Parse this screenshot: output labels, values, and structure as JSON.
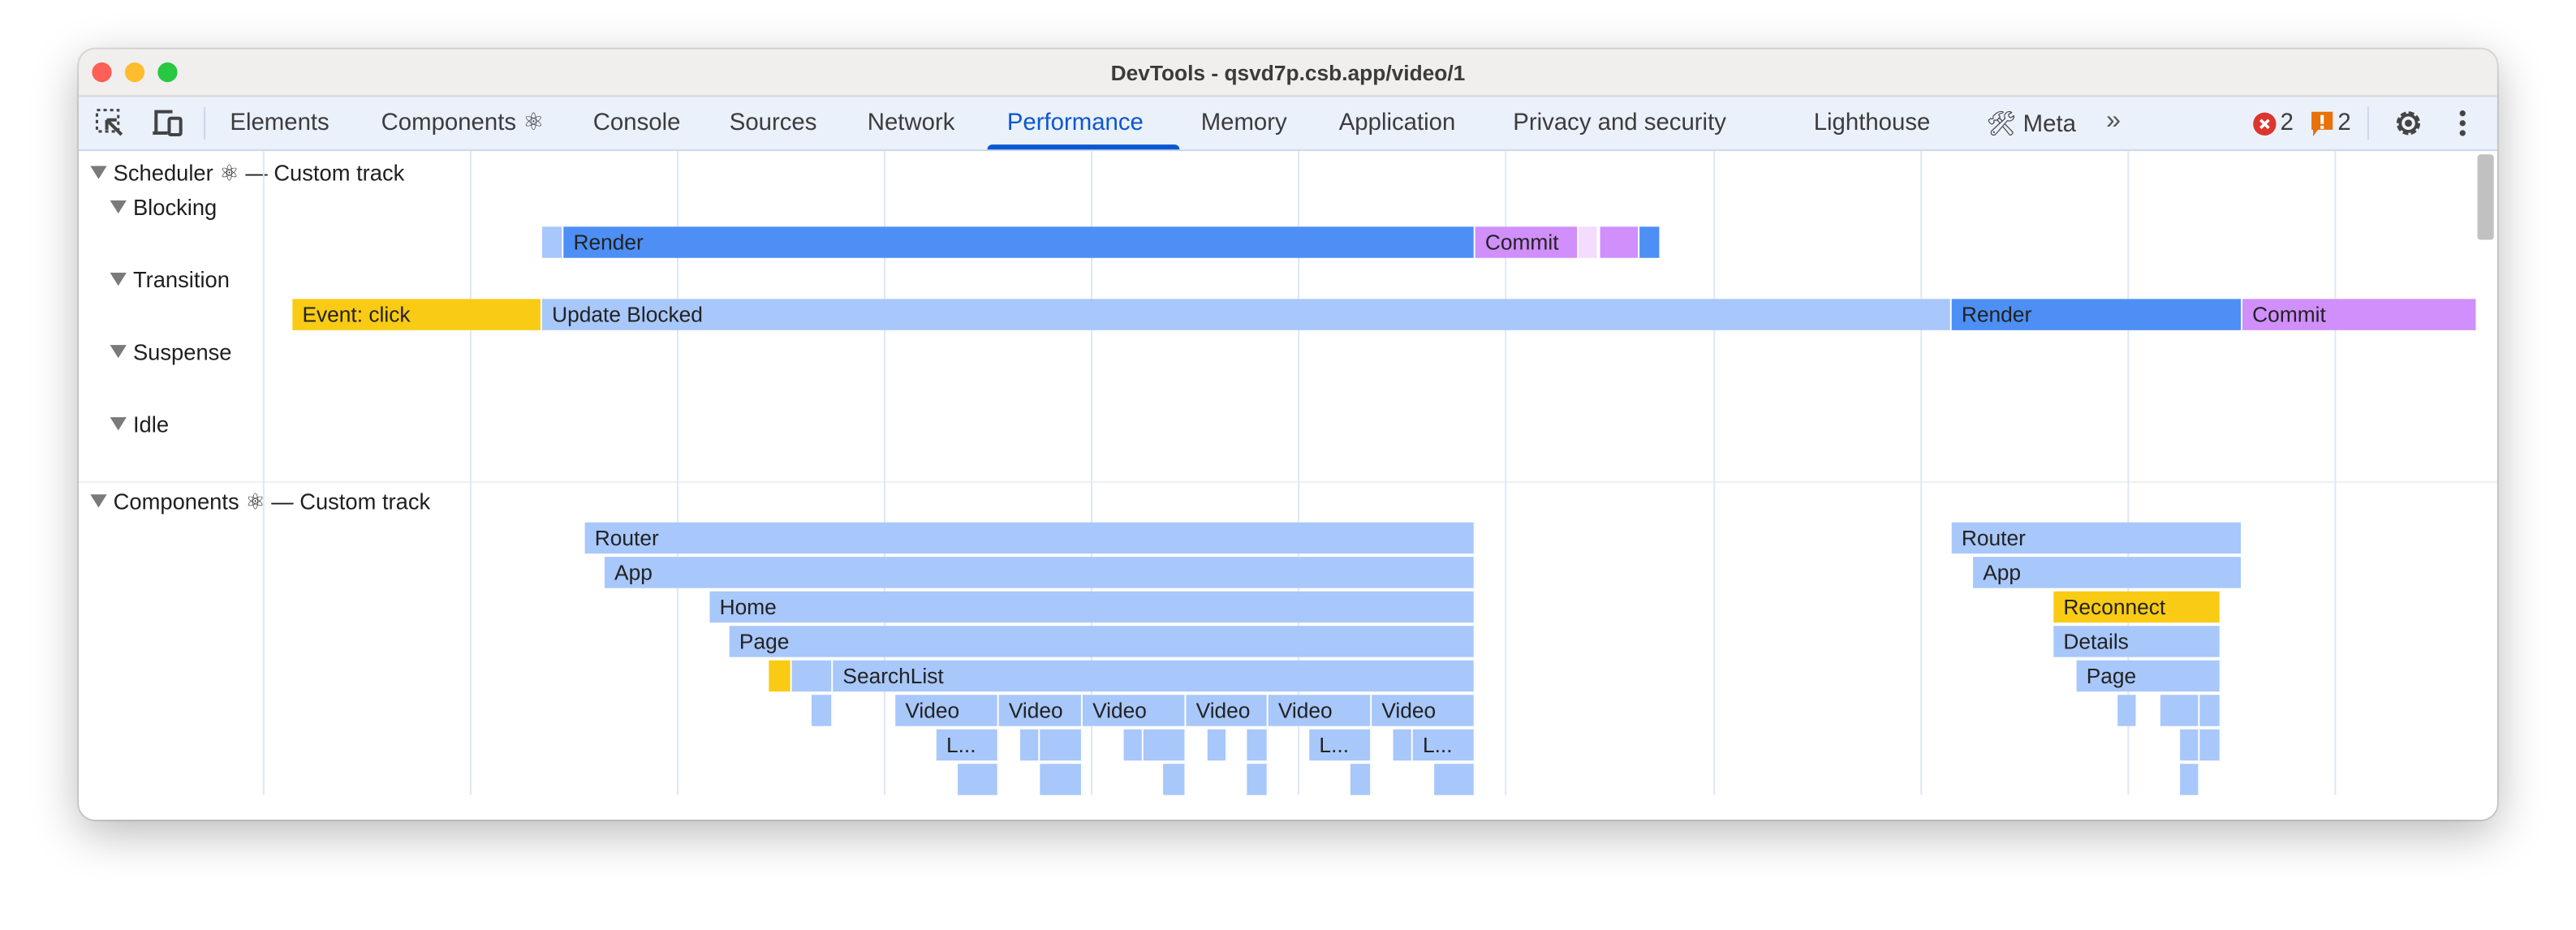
{
  "window": {
    "title": "DevTools - qsvd7p.csb.app/video/1"
  },
  "toolbar": {
    "tabs": [
      {
        "label": "Elements"
      },
      {
        "label": "Components ⚛"
      },
      {
        "label": "Console"
      },
      {
        "label": "Sources"
      },
      {
        "label": "Network"
      },
      {
        "label": "Performance",
        "active": true
      },
      {
        "label": "Memory"
      },
      {
        "label": "Application"
      },
      {
        "label": "Privacy and security"
      },
      {
        "label": "Lighthouse"
      },
      {
        "label": "🛠 Meta"
      }
    ],
    "more_icon": "»",
    "error_count": "2",
    "warning_count": "2",
    "icons": [
      "inspect-element-icon",
      "device-toolbar-icon",
      "more-tabs-icon",
      "error-icon",
      "warning-icon",
      "gear-icon",
      "kebab-menu-icon"
    ]
  },
  "colors": {
    "accent": "#0b57d0",
    "render": "#4d8ff5",
    "light_blue": "#a8c7fa",
    "commit": "#d08ffb",
    "commit_pale": "#f3dcfd",
    "event": "#f9cb14",
    "error": "#dc362e",
    "warning": "#e8710a"
  },
  "scheduler": {
    "header": "Scheduler ⚛ — Custom track",
    "lanes": [
      "Blocking",
      "Transition",
      "Suspense",
      "Idle"
    ],
    "blocking": {
      "render": "Render",
      "commit": "Commit"
    },
    "transition": {
      "event": "Event: click",
      "update_blocked": "Update Blocked",
      "render": "Render",
      "commit": "Commit"
    }
  },
  "components": {
    "header": "Components ⚛ — Custom track",
    "left": {
      "router": "Router",
      "app": "App",
      "home": "Home",
      "page": "Page",
      "searchlist": "SearchList",
      "video": "Video",
      "truncated": "L..."
    },
    "right": {
      "router": "Router",
      "app": "App",
      "reconnect": "Reconnect",
      "details": "Details",
      "page": "Page"
    }
  }
}
